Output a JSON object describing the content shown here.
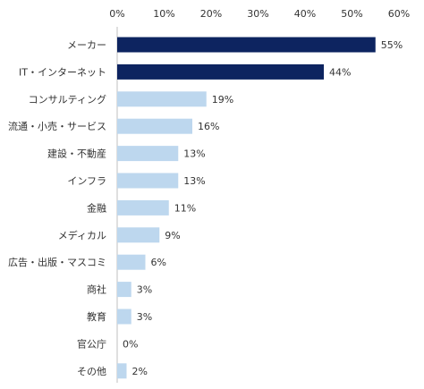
{
  "chart_data": {
    "type": "bar",
    "orientation": "horizontal",
    "categories": [
      "メーカー",
      "IT・インターネット",
      "コンサルティング",
      "流通・小売・サービス",
      "建設・不動産",
      "インフラ",
      "金融",
      "メディカル",
      "広告・出版・マスコミ",
      "商社",
      "教育",
      "官公庁",
      "その他"
    ],
    "values": [
      55,
      44,
      19,
      16,
      13,
      13,
      11,
      9,
      6,
      3,
      3,
      0,
      2
    ],
    "value_labels": [
      "55%",
      "44%",
      "19%",
      "16%",
      "13%",
      "13%",
      "11%",
      "9%",
      "6%",
      "3%",
      "3%",
      "0%",
      "2%"
    ],
    "highlight": [
      true,
      true,
      false,
      false,
      false,
      false,
      false,
      false,
      false,
      false,
      false,
      false,
      false
    ],
    "xlim": [
      0,
      60
    ],
    "xticks": [
      0,
      10,
      20,
      30,
      40,
      50,
      60
    ],
    "xtick_labels": [
      "0%",
      "10%",
      "20%",
      "30%",
      "40%",
      "50%",
      "60%"
    ],
    "axis_position": "top",
    "grid": false,
    "title": "",
    "xlabel": "",
    "ylabel": "",
    "colors": {
      "highlight": "#0d2460",
      "normal": "#bdd7ee",
      "axis": "#bfbfbf",
      "text": "#333333"
    }
  }
}
